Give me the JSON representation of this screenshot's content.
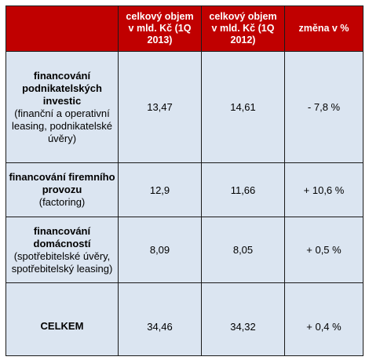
{
  "header": {
    "col_category": "",
    "col_2013": "celkový objem v mld. Kč (1Q 2013)",
    "col_2012": "celkový objem v mld. Kč (1Q 2012)",
    "col_change": "změna v %"
  },
  "rows": [
    {
      "label_main": "financování podnikatelských investic",
      "label_sub": "(finanční a operativní leasing, podnikatelské úvěry)",
      "value_2013": "13,47",
      "value_2012": "14,61",
      "change": "- 7,8 %"
    },
    {
      "label_main": "financování firemního provozu",
      "label_sub": "(factoring)",
      "value_2013": "12,9",
      "value_2012": "11,66",
      "change": "+ 10,6 %"
    },
    {
      "label_main": "financování domácností",
      "label_sub": "(spotřebitelské úvěry, spotřebitelský leasing)",
      "value_2013": "8,09",
      "value_2012": "8,05",
      "change": "+ 0,5 %"
    }
  ],
  "total": {
    "label": "CELKEM",
    "value_2013": "34,46",
    "value_2012": "34,32",
    "change": "+ 0,4 %"
  },
  "colors": {
    "header_bg": "#c00000",
    "header_text": "#ffffff",
    "body_bg": "#dbe5f1",
    "border": "#1a1a1a"
  }
}
